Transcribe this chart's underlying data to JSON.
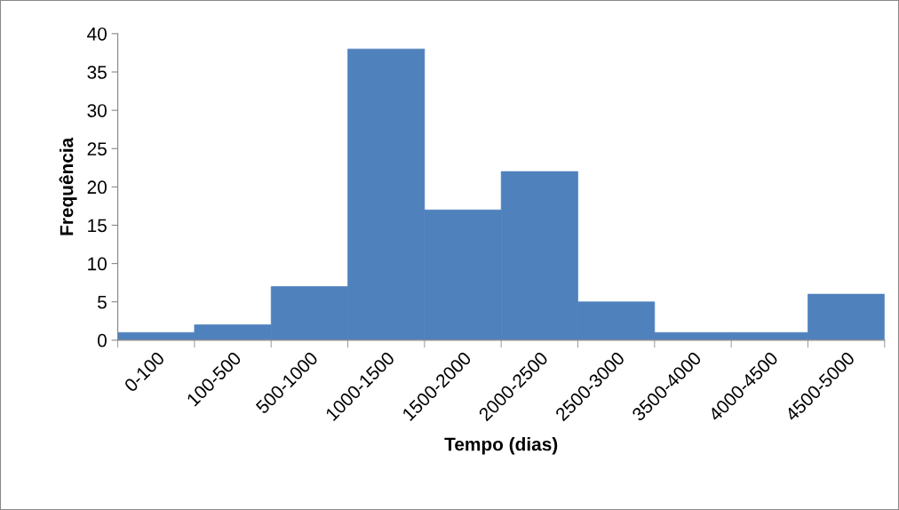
{
  "chart_data": {
    "type": "bar",
    "xlabel": "Tempo (dias)",
    "ylabel": "Frequência",
    "categories": [
      "0-100",
      "100-500",
      "500-1000",
      "1000-1500",
      "1500-2000",
      "2000-2500",
      "2500-3000",
      "3500-4000",
      "4000-4500",
      "4500-5000"
    ],
    "values": [
      1,
      2,
      7,
      38,
      17,
      22,
      5,
      1,
      1,
      6
    ],
    "color": "#4f81bd",
    "ylim": [
      0,
      40
    ],
    "yticks": [
      0,
      5,
      10,
      15,
      20,
      25,
      30,
      35,
      40
    ],
    "grid": false,
    "legend": false
  }
}
